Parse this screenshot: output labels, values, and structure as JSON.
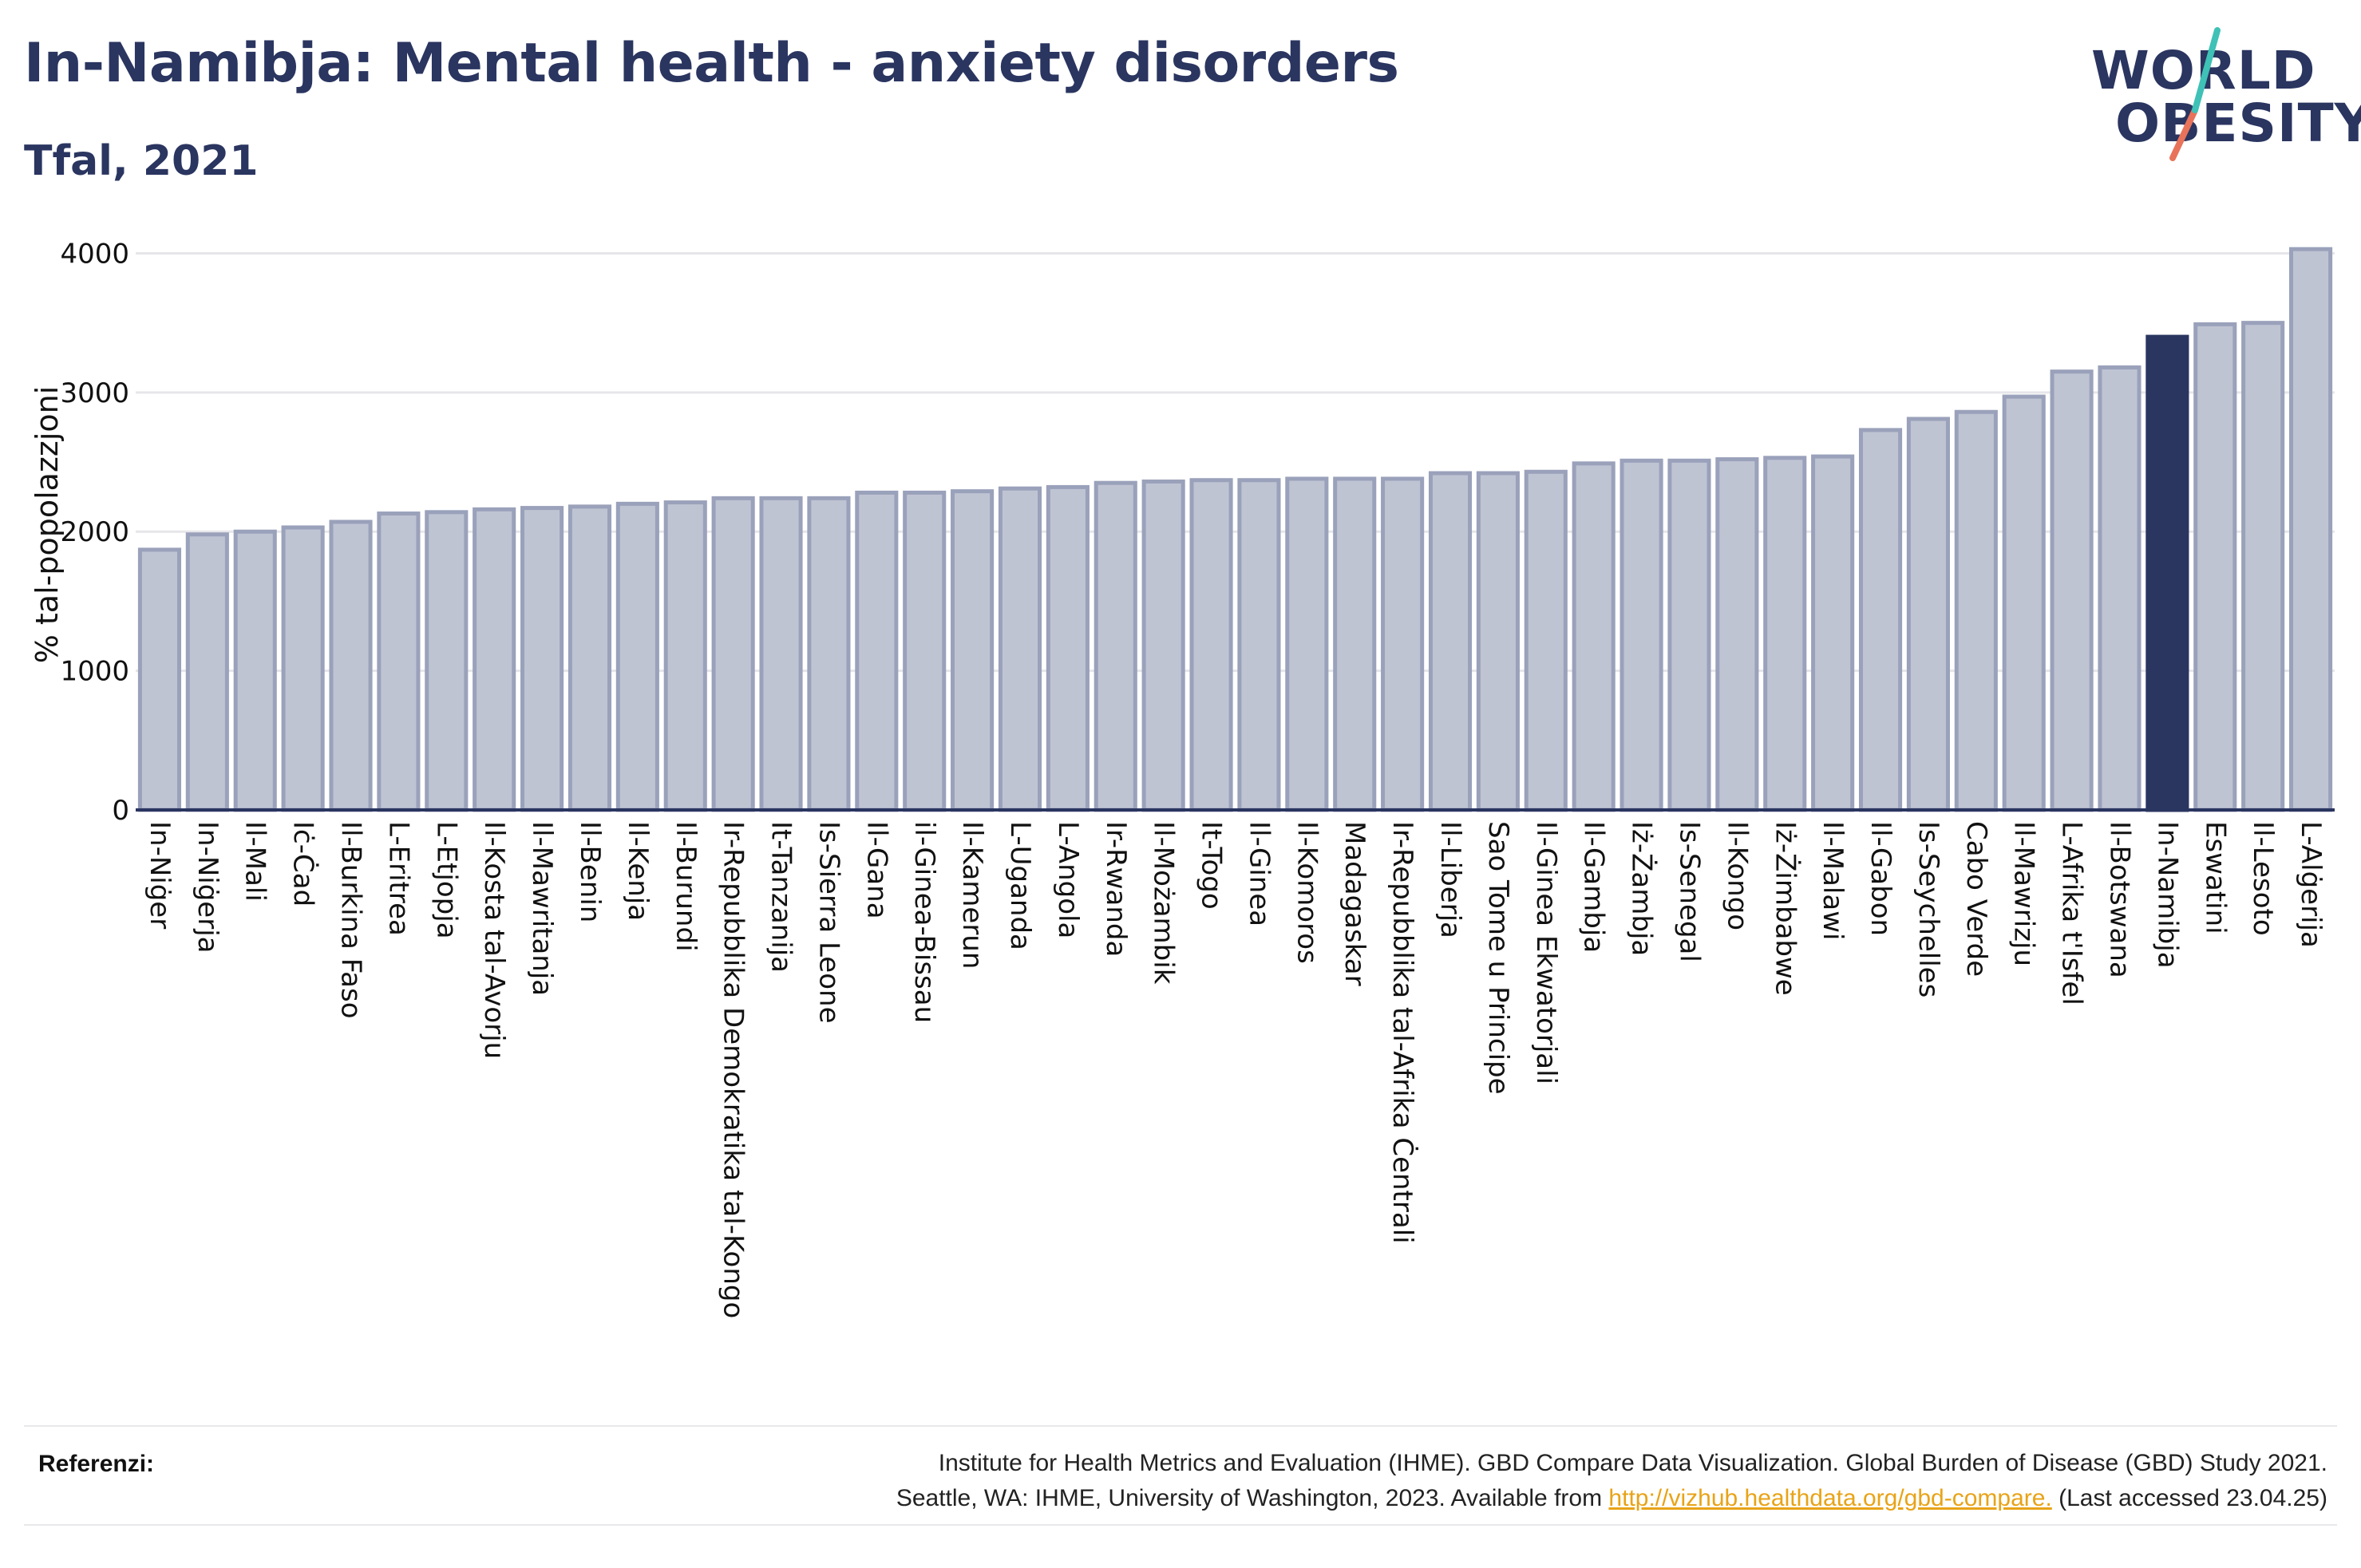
{
  "title": "In-Namibja: Mental health - anxiety disorders",
  "subtitle": "Tfal, 2021",
  "logo": {
    "line1": "WORLD",
    "line2": "OBESITY",
    "accent_teal": "#3ec1b6",
    "accent_coral": "#e8735a"
  },
  "references": {
    "label": "Referenzi:",
    "line1": "Institute for Health Metrics and Evaluation (IHME). GBD Compare Data Visualization. Global Burden of Disease (GBD) Study 2021.",
    "line2_prefix": "Seattle, WA: IHME, University of Washington, 2023. Available from ",
    "link": "http://vizhub.healthdata.org/gbd-compare.",
    "line2_suffix": " (Last accessed 23.04.25)"
  },
  "chart_data": {
    "type": "bar",
    "title": "In-Namibja: Mental health - anxiety disorders",
    "subtitle": "Tfal, 2021",
    "ylabel": "% tal-popolazzjoni",
    "xlabel": "",
    "ylim": [
      0,
      4100
    ],
    "yticks": [
      0,
      1000,
      2000,
      3000,
      4000
    ],
    "grid": true,
    "highlight": "In-Namibja",
    "colors": {
      "bar": "#bfc4d3",
      "bar_border": "#9aa1ba",
      "highlight": "#2a3560",
      "grid": "#e6e6ea",
      "axis": "#2a3560"
    },
    "categories": [
      "In-Niġer",
      "In-Niġerja",
      "Il-Mali",
      "Iċ-Ċad",
      "Il-Burkina Faso",
      "L-Eritrea",
      "L-Etjopja",
      "Il-Kosta tal-Avorju",
      "Il-Mawritanja",
      "Il-Benin",
      "Il-Kenja",
      "Il-Burundi",
      "Ir-Repubblika Demokratika tal-Kongo",
      "It-Tanzanija",
      "Is-Sierra Leone",
      "Il-Gana",
      "il-Ginea-Bissau",
      "Il-Kamerun",
      "L-Uganda",
      "L-Angola",
      "Ir-Rwanda",
      "Il-Możambik",
      "It-Togo",
      "Il-Ginea",
      "Il-Komoros",
      "Madagaskar",
      "Ir-Repubblika tal-Afrika Ċentrali",
      "Il-Liberja",
      "Sao Tome u Principe",
      "Il-Ginea Ekwatorjali",
      "Il-Gambja",
      "Iż-Żambja",
      "Is-Senegal",
      "Il-Kongo",
      "Iż-Żimbabwe",
      "Il-Malawi",
      "Il-Gabon",
      "Is-Seychelles",
      "Cabo Verde",
      "Il-Mawrizju",
      "L-Afrika t'Isfel",
      "Il-Botswana",
      "In-Namibja",
      "Eswatini",
      "Il-Lesoto",
      "L-Alġerija"
    ],
    "values": [
      1870,
      1980,
      2000,
      2030,
      2070,
      2130,
      2140,
      2160,
      2170,
      2180,
      2200,
      2210,
      2240,
      2240,
      2240,
      2280,
      2280,
      2290,
      2310,
      2320,
      2350,
      2360,
      2370,
      2370,
      2380,
      2380,
      2380,
      2420,
      2420,
      2430,
      2490,
      2510,
      2510,
      2520,
      2530,
      2540,
      2730,
      2810,
      2860,
      2970,
      3150,
      3180,
      3400,
      3490,
      3500,
      4030
    ]
  }
}
